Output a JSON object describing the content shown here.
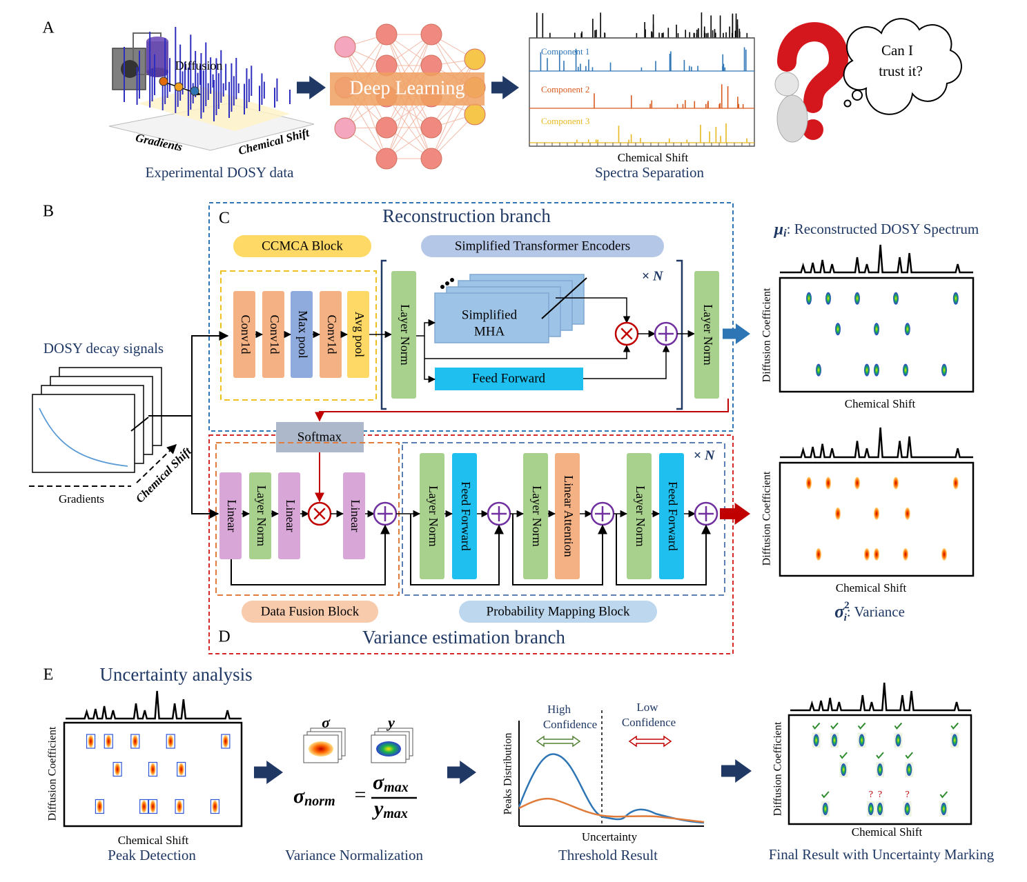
{
  "panel_a": {
    "label": "A",
    "diffusion": "Diffusion",
    "gradients": "Gradients",
    "chemical_shift": "Chemical Shift",
    "caption_dosy": "Experimental DOSY data",
    "deep_learning": "Deep Learning",
    "components": [
      "Component 1",
      "Component 2",
      "Component 3"
    ],
    "spectra_axis": "Chemical Shift",
    "caption_separation": "Spectra Separation",
    "thought": [
      "Can I",
      "trust it?"
    ]
  },
  "panel_b": {
    "label": "B",
    "input": {
      "title": "DOSY decay signals",
      "gradients": "Gradients",
      "chemical_shift": "Chemical Shift"
    },
    "outputs": {
      "mu_symbol": "μ",
      "mu_sub": "i",
      "mu_text": ": Reconstructed DOSY Spectrum",
      "sigma_symbol": "σ",
      "sigma_sup": "2",
      "sigma_sub": "i",
      "sigma_text": ": Variance",
      "y_axis": "Diffusion Coefficient",
      "x_axis": "Chemical Shift"
    }
  },
  "panel_c": {
    "label": "C",
    "title": "Reconstruction branch",
    "ccmca": "CCMCA Block",
    "encoders": "Simplified Transformer Encoders",
    "ccmca_layers": [
      "Conv1d",
      "Conv1d",
      "Max pool",
      "Conv1d",
      "Avg pool"
    ],
    "layer_norm": "Layer Norm",
    "mha": [
      "Simplified",
      "MHA"
    ],
    "repeat": "× N",
    "feed_forward": "Feed Forward",
    "layer_norm_out": "Layer Norm"
  },
  "panel_d": {
    "label": "D",
    "title": "Variance estimation branch",
    "softmax": "Softmax",
    "fusion_layers": [
      "Linear",
      "Layer Norm",
      "Linear",
      "Linear"
    ],
    "mapping_layers": [
      "Layer Norm",
      "Feed Forward",
      "Layer Norm",
      "Linear Attention",
      "Layer Norm",
      "Feed Forward"
    ],
    "repeat": "× N",
    "fusion_block": "Data Fusion Block",
    "mapping_block": "Probability Mapping Block"
  },
  "panel_e": {
    "label": "E",
    "title": "Uncertainty analysis",
    "y_axis": "Diffusion Coefficient",
    "x_axis": "Chemical Shift",
    "peak_detection": "Peak Detection",
    "sigma": "σ",
    "y": "y",
    "formula": {
      "lhs": "σ",
      "lhs_sub": "norm",
      "equals": "=",
      "num": "σ",
      "num_sub": "max",
      "den": "y",
      "den_sub": "max"
    },
    "variance_normalization": "Variance Normalization",
    "high_confidence": [
      "High",
      "Confidence"
    ],
    "low_confidence": [
      "Low",
      "Confidence"
    ],
    "dist_y": "Peaks Distribution",
    "dist_x": "Uncertainty",
    "threshold_result": "Threshold Result",
    "final_result": "Final Result with Uncertainty Marking",
    "uncertain_mark": "?"
  }
}
